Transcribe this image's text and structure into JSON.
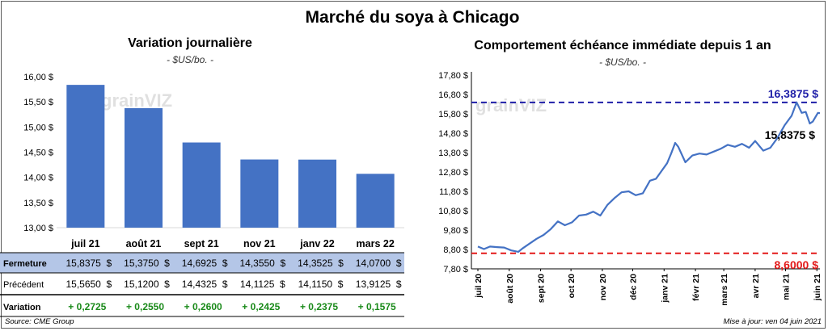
{
  "title": "Marché du soya à Chicago",
  "left_chart": {
    "title": "Variation journalière",
    "unit": "- $US/bo. -"
  },
  "right_chart": {
    "title": "Comportement  échéance immédiate depuis 1 an",
    "unit": "- $US/bo. -",
    "max_label": "16,3875 $",
    "min_label": "8,6000 $",
    "last_label": "15,8375 $"
  },
  "watermark": "grainVIZ",
  "table": {
    "row_labels": [
      "Fermeture",
      "Précédent",
      "Variation"
    ],
    "fermeture": [
      "15,8375  $",
      "15,3750  $",
      "14,6925  $",
      "14,3550  $",
      "14,3525  $",
      "14,0700  $"
    ],
    "precedent": [
      "15,5650  $",
      "15,1200  $",
      "14,4325  $",
      "14,1125  $",
      "14,1150  $",
      "13,9125  $"
    ],
    "variation": [
      "+ 0,2725",
      "+ 0,2550",
      "+ 0,2600",
      "+ 0,2425",
      "+ 0,2375",
      "+ 0,1575"
    ]
  },
  "footer": {
    "source": "Source: CME Group",
    "update": "Mise à jour: ven 04 juin 2021"
  },
  "colors": {
    "bar": "#4472c4",
    "line": "#4472c4",
    "max_line": "#1f1fa8",
    "min_line": "#e31a1a",
    "table_highlight": "#b4c6e7",
    "variation_text": "#1a8a1a"
  },
  "chart_data": [
    {
      "type": "bar",
      "title": "Variation journalière",
      "categories": [
        "juil 21",
        "août 21",
        "sept 21",
        "nov 21",
        "janv 22",
        "mars 22"
      ],
      "values": [
        15.8375,
        15.375,
        14.6925,
        14.355,
        14.3525,
        14.07
      ],
      "yticks": [
        "13,00 $",
        "13,50 $",
        "14,00 $",
        "14,50 $",
        "15,00 $",
        "15,50 $",
        "16,00 $"
      ],
      "ylim": [
        13.0,
        16.0
      ],
      "grid": false
    },
    {
      "type": "line",
      "title": "Comportement  échéance immédiate depuis 1 an",
      "xticks": [
        "juil 20",
        "août 20",
        "sept 20",
        "oct 20",
        "nov 20",
        "déc 20",
        "janv 21",
        "févr 21",
        "mars 21",
        "avr 21",
        "mai 21",
        "juin 21"
      ],
      "yticks": [
        "7,80 $",
        "8,80 $",
        "9,80 $",
        "10,80 $",
        "11,80 $",
        "12,80 $",
        "13,80 $",
        "14,80 $",
        "15,80 $",
        "16,80 $",
        "17,80 $"
      ],
      "ylim": [
        7.8,
        17.8
      ],
      "max": 16.3875,
      "min": 8.6,
      "last": 15.8375,
      "series_points": [
        [
          "2020-07-01",
          8.95
        ],
        [
          "2020-07-07",
          8.82
        ],
        [
          "2020-07-13",
          8.95
        ],
        [
          "2020-07-20",
          8.92
        ],
        [
          "2020-07-27",
          8.9
        ],
        [
          "2020-08-03",
          8.75
        ],
        [
          "2020-08-10",
          8.68
        ],
        [
          "2020-08-14",
          8.85
        ],
        [
          "2020-08-21",
          9.1
        ],
        [
          "2020-08-28",
          9.35
        ],
        [
          "2020-09-04",
          9.55
        ],
        [
          "2020-09-11",
          9.85
        ],
        [
          "2020-09-18",
          10.25
        ],
        [
          "2020-09-25",
          10.05
        ],
        [
          "2020-10-02",
          10.2
        ],
        [
          "2020-10-09",
          10.55
        ],
        [
          "2020-10-16",
          10.6
        ],
        [
          "2020-10-23",
          10.75
        ],
        [
          "2020-10-30",
          10.55
        ],
        [
          "2020-11-06",
          11.1
        ],
        [
          "2020-11-13",
          11.45
        ],
        [
          "2020-11-20",
          11.75
        ],
        [
          "2020-11-27",
          11.8
        ],
        [
          "2020-12-04",
          11.6
        ],
        [
          "2020-12-11",
          11.7
        ],
        [
          "2020-12-18",
          12.35
        ],
        [
          "2020-12-24",
          12.45
        ],
        [
          "2021-01-04",
          13.25
        ],
        [
          "2021-01-08",
          13.75
        ],
        [
          "2021-01-12",
          14.3
        ],
        [
          "2021-01-15",
          14.1
        ],
        [
          "2021-01-22",
          13.3
        ],
        [
          "2021-01-29",
          13.65
        ],
        [
          "2021-02-05",
          13.75
        ],
        [
          "2021-02-12",
          13.7
        ],
        [
          "2021-02-19",
          13.85
        ],
        [
          "2021-02-26",
          14.0
        ],
        [
          "2021-03-05",
          14.2
        ],
        [
          "2021-03-12",
          14.1
        ],
        [
          "2021-03-19",
          14.25
        ],
        [
          "2021-03-26",
          14.05
        ],
        [
          "2021-04-01",
          14.4
        ],
        [
          "2021-04-09",
          13.9
        ],
        [
          "2021-04-16",
          14.05
        ],
        [
          "2021-04-23",
          14.55
        ],
        [
          "2021-04-30",
          15.2
        ],
        [
          "2021-05-07",
          15.7
        ],
        [
          "2021-05-12",
          16.39
        ],
        [
          "2021-05-17",
          15.85
        ],
        [
          "2021-05-21",
          15.9
        ],
        [
          "2021-05-25",
          15.3
        ],
        [
          "2021-05-28",
          15.4
        ],
        [
          "2021-06-02",
          15.85
        ],
        [
          "2021-06-04",
          15.8375
        ]
      ]
    }
  ]
}
